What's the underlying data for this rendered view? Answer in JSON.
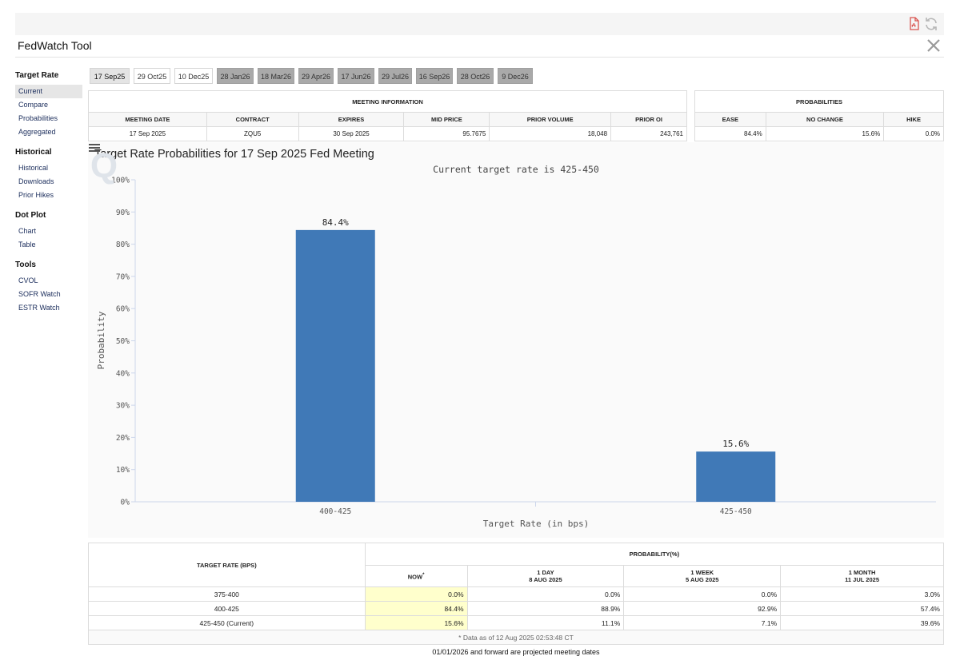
{
  "app": {
    "title": "FedWatch Tool"
  },
  "sidebar": [
    {
      "heading": "Target Rate",
      "items": [
        {
          "label": "Current",
          "active": true
        },
        {
          "label": "Compare"
        },
        {
          "label": "Probabilities"
        },
        {
          "label": "Aggregated"
        }
      ]
    },
    {
      "heading": "Historical",
      "items": [
        {
          "label": "Historical"
        },
        {
          "label": "Downloads"
        },
        {
          "label": "Prior Hikes"
        }
      ]
    },
    {
      "heading": "Dot Plot",
      "items": [
        {
          "label": "Chart"
        },
        {
          "label": "Table"
        }
      ]
    },
    {
      "heading": "Tools",
      "items": [
        {
          "label": "CVOL"
        },
        {
          "label": "SOFR Watch"
        },
        {
          "label": "ESTR Watch"
        }
      ]
    }
  ],
  "tabs": [
    {
      "label": "17 Sep25",
      "state": "current"
    },
    {
      "label": "29 Oct25",
      "state": "normal"
    },
    {
      "label": "10 Dec25",
      "state": "normal"
    },
    {
      "label": "28 Jan26",
      "state": "projected"
    },
    {
      "label": "18 Mar26",
      "state": "projected"
    },
    {
      "label": "29 Apr26",
      "state": "projected"
    },
    {
      "label": "17 Jun26",
      "state": "projected"
    },
    {
      "label": "29 Jul26",
      "state": "projected"
    },
    {
      "label": "16 Sep26",
      "state": "projected"
    },
    {
      "label": "28 Oct26",
      "state": "projected"
    },
    {
      "label": "9 Dec26",
      "state": "projected"
    }
  ],
  "meeting_info": {
    "title": "MEETING INFORMATION",
    "headers": [
      "MEETING DATE",
      "CONTRACT",
      "EXPIRES",
      "MID PRICE",
      "PRIOR VOLUME",
      "PRIOR OI"
    ],
    "row": [
      "17 Sep 2025",
      "ZQU5",
      "30 Sep 2025",
      "95.7675",
      "18,048",
      "243,761"
    ]
  },
  "probabilities": {
    "title": "PROBABILITIES",
    "headers": [
      "EASE",
      "NO CHANGE",
      "HIKE"
    ],
    "row": [
      "84.4%",
      "15.6%",
      "0.0%"
    ]
  },
  "chart_data": {
    "type": "bar",
    "title": "Target Rate Probabilities for 17 Sep 2025 Fed Meeting",
    "subtitle": "Current target rate is 425-450",
    "xlabel": "Target Rate (in bps)",
    "ylabel": "Probability",
    "categories": [
      "400-425",
      "425-450"
    ],
    "values": [
      84.4,
      15.6
    ],
    "data_labels": [
      "84.4%",
      "15.6%"
    ],
    "ylim": [
      0,
      100
    ],
    "yticks": [
      0,
      10,
      20,
      30,
      40,
      50,
      60,
      70,
      80,
      90,
      100
    ],
    "ytick_labels": [
      "0%",
      "10%",
      "20%",
      "30%",
      "40%",
      "50%",
      "60%",
      "70%",
      "80%",
      "90%",
      "100%"
    ],
    "bar_color": "#4079b7",
    "grid": false
  },
  "rate_table": {
    "col1_header": "TARGET RATE (BPS)",
    "group_header": "PROBABILITY(%)",
    "now_label": "NOW",
    "now_marker": "*",
    "periods": [
      {
        "label": "1 DAY",
        "date": "8 AUG 2025"
      },
      {
        "label": "1 WEEK",
        "date": "5 AUG 2025"
      },
      {
        "label": "1 MONTH",
        "date": "11 JUL 2025"
      }
    ],
    "rows": [
      {
        "rate": "375-400",
        "now": "0.0%",
        "day": "0.0%",
        "week": "0.0%",
        "month": "3.0%"
      },
      {
        "rate": "400-425",
        "now": "84.4%",
        "day": "88.9%",
        "week": "92.9%",
        "month": "57.4%"
      },
      {
        "rate": "425-450 (Current)",
        "now": "15.6%",
        "day": "11.1%",
        "week": "7.1%",
        "month": "39.6%"
      }
    ],
    "footnote": "* Data as of 12 Aug 2025 02:53:48 CT"
  },
  "projected_note": "01/01/2026 and forward are projected meeting dates",
  "icons": {
    "top1": "pdf-export-icon",
    "top2": "refresh-icon",
    "close": "close-icon",
    "menu": "hamburger-menu-icon",
    "watermark": "q-watermark-icon"
  }
}
